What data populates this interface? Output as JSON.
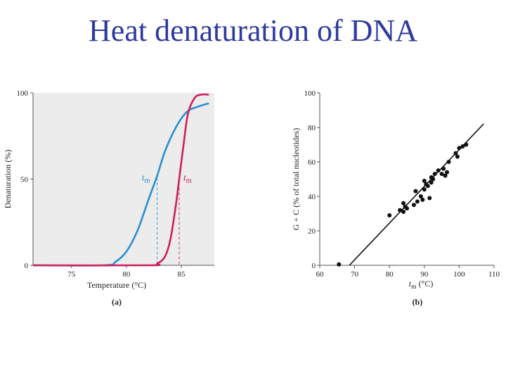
{
  "title": "Heat denaturation of DNA",
  "chart_data": [
    {
      "type": "line",
      "panel_label": "(a)",
      "xlabel": "Temperature (°C)",
      "ylabel": "Denaturation (%)",
      "xlim": [
        71.5,
        88
      ],
      "ylim": [
        0,
        100
      ],
      "xticks": [
        75,
        80,
        85
      ],
      "yticks": [
        0,
        50,
        100
      ],
      "tm_label": "t_m",
      "colors": {
        "blue": "#2a8fd0",
        "red": "#cc1f5e"
      },
      "series": [
        {
          "color": "#2a8fd0",
          "tm": 82.8,
          "x": [
            71.5,
            78.0,
            79.0,
            80.0,
            81.0,
            82.0,
            82.8,
            83.5,
            84.5,
            85.5,
            86.5,
            87.5
          ],
          "y": [
            0,
            0,
            2,
            8,
            20,
            38,
            52,
            66,
            80,
            89,
            92,
            94
          ]
        },
        {
          "color": "#cc1f5e",
          "tm": 84.8,
          "x": [
            71.5,
            82.0,
            82.8,
            83.5,
            84.0,
            84.5,
            84.8,
            85.2,
            85.6,
            86.2,
            86.8,
            87.5
          ],
          "y": [
            0,
            0,
            1,
            5,
            15,
            35,
            50,
            70,
            88,
            97,
            99,
            99
          ]
        }
      ]
    },
    {
      "type": "scatter",
      "panel_label": "(b)",
      "xlabel": "t_m (°C)",
      "ylabel": "G + C (% of total nucleotides)",
      "xlim": [
        60,
        110
      ],
      "ylim": [
        0,
        100
      ],
      "xticks": [
        60,
        70,
        80,
        90,
        100,
        110
      ],
      "yticks": [
        0,
        20,
        40,
        60,
        80,
        100
      ],
      "fit_line": {
        "x": [
          68.5,
          107
        ],
        "y": [
          0,
          82
        ]
      },
      "x": [
        65.5,
        80,
        83,
        84,
        84.5,
        85,
        87,
        88,
        89,
        89.5,
        90,
        90.5,
        91,
        91.5,
        92,
        92.5,
        93,
        94,
        95,
        95.5,
        96,
        96.5,
        97,
        99,
        99.5,
        100,
        101,
        102,
        84,
        87.5,
        90,
        92
      ],
      "y": [
        0.5,
        29,
        32,
        31,
        34,
        33,
        35,
        37,
        40,
        38,
        44,
        47,
        46,
        39,
        48,
        50,
        53,
        55,
        53,
        56,
        52,
        54,
        60,
        65,
        63,
        68,
        69,
        70,
        36,
        43,
        49,
        51
      ]
    }
  ]
}
